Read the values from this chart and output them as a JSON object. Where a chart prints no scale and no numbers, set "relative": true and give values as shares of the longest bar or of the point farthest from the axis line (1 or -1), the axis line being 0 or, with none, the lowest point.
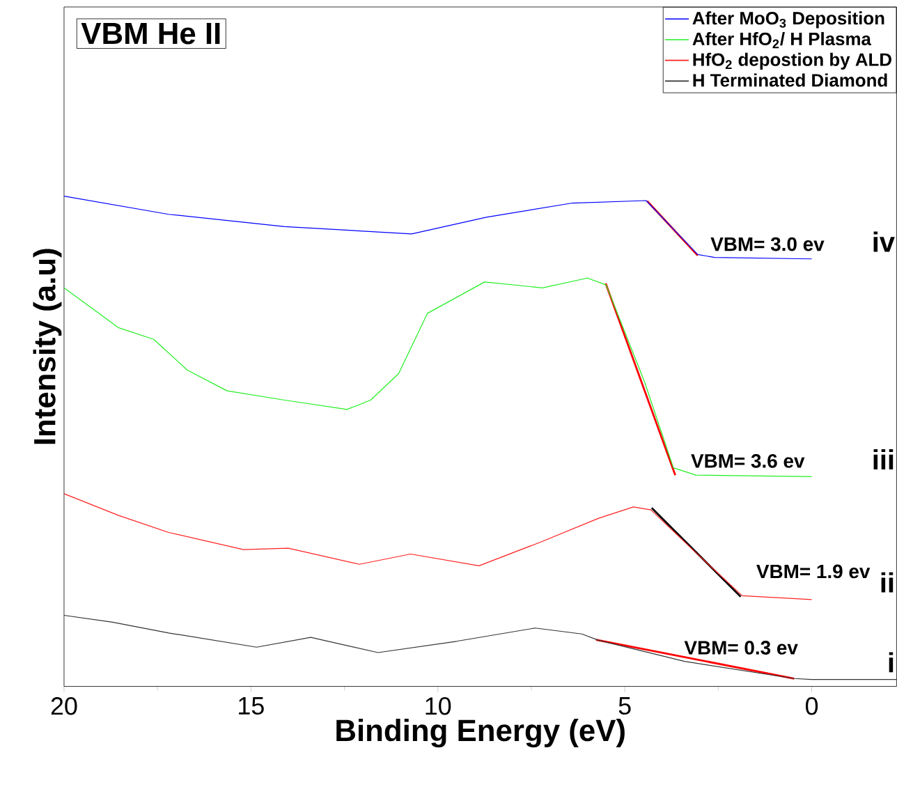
{
  "chart_data": {
    "type": "line",
    "title": "VBM He II",
    "xlabel": "Binding Energy (eV)",
    "ylabel": "Intensity (a.u)",
    "relative": true,
    "xlim": [
      20,
      -2.27
    ],
    "xticks": [
      20,
      15,
      10,
      5,
      0
    ],
    "legend": "top right",
    "series": [
      {
        "name": "After MoO$_{3}$ Deposition",
        "color": "#0000ff",
        "x": [
          20,
          17.2,
          14.1,
          10.7,
          8.7,
          6.4,
          4.43,
          3.05,
          2.6,
          0
        ],
        "values": [
          1.0,
          0.963,
          0.938,
          0.923,
          0.957,
          0.986,
          0.991,
          0.881,
          0.875,
          0.872
        ]
      },
      {
        "name": "After HfO$_{2}$/ H Plasma",
        "color": "#22ee22",
        "x": [
          20,
          18.55,
          17.6,
          16.7,
          15.64,
          14.1,
          12.43,
          11.8,
          11.05,
          10.28,
          8.75,
          7.2,
          6.0,
          5.5,
          4.47,
          3.7,
          3.1,
          0
        ],
        "values": [
          0.813,
          0.732,
          0.708,
          0.645,
          0.603,
          0.584,
          0.565,
          0.584,
          0.638,
          0.761,
          0.825,
          0.813,
          0.833,
          0.819,
          0.621,
          0.446,
          0.431,
          0.428
        ]
      },
      {
        "name": "HfO$_{2}$ depostion by ALD",
        "color": "#ff2020",
        "x": [
          20,
          18.55,
          17.2,
          15.2,
          14.0,
          12.1,
          10.73,
          8.9,
          7.2,
          5.7,
          4.77,
          4.3,
          3.1,
          1.86,
          0
        ],
        "values": [
          0.393,
          0.349,
          0.314,
          0.279,
          0.282,
          0.249,
          0.27,
          0.246,
          0.296,
          0.343,
          0.366,
          0.36,
          0.273,
          0.185,
          0.177
        ]
      },
      {
        "name": "H Terminated Diamond",
        "color": "#333333",
        "x": [
          20,
          18.7,
          17.2,
          14.85,
          13.4,
          11.6,
          9.5,
          7.4,
          6.15,
          5.7,
          3.4,
          0.47,
          0,
          -2.27
        ],
        "values": [
          0.145,
          0.131,
          0.109,
          0.08,
          0.1,
          0.069,
          0.092,
          0.119,
          0.107,
          0.094,
          0.051,
          0.016,
          0.014,
          0.014
        ]
      },
      {
        "type": "line",
        "color": "#ff0000",
        "x": [
          4.4,
          3.05
        ],
        "values": [
          0.99,
          0.879
        ]
      },
      {
        "type": "line",
        "color": "#ff0000",
        "x": [
          5.51,
          3.65
        ],
        "values": [
          0.822,
          0.431
        ]
      },
      {
        "type": "line",
        "color": "#000000",
        "x": [
          4.28,
          1.9
        ],
        "values": [
          0.364,
          0.183
        ]
      },
      {
        "type": "line",
        "color": "#ff0000",
        "x": [
          5.77,
          0.47
        ],
        "values": [
          0.095,
          0.016
        ]
      }
    ],
    "annotations": [
      "VBM= 3.0 ev",
      "VBM= 3.6 ev",
      "VBM= 1.9 ev",
      "VBM= 0.3 ev",
      "iv",
      "iii",
      "ii",
      "i"
    ]
  }
}
